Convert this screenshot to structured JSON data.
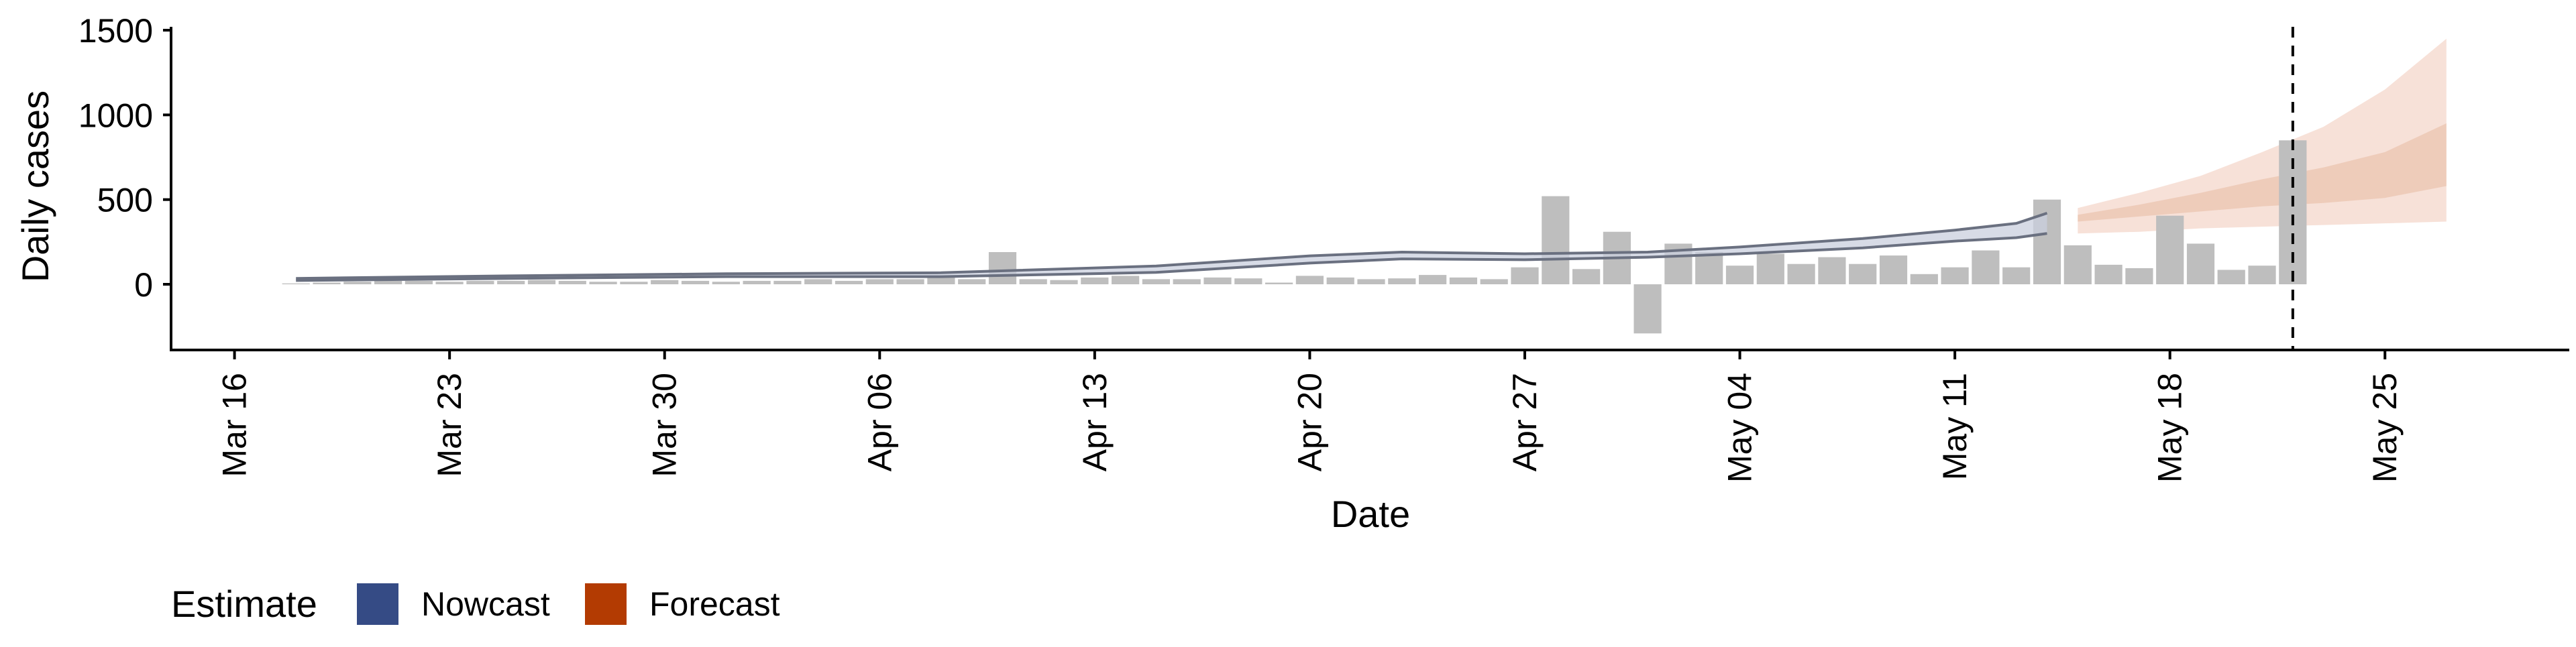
{
  "chart_data": {
    "type": "bar",
    "title": "",
    "xlabel": "Date",
    "ylabel": "Daily cases",
    "ylim": [
      -380,
      1520
    ],
    "yticks": [
      0,
      500,
      1000,
      1500
    ],
    "x_ticks": [
      {
        "date": "2020-03-16",
        "label": "Mar 16"
      },
      {
        "date": "2020-03-23",
        "label": "Mar 23"
      },
      {
        "date": "2020-03-30",
        "label": "Mar 30"
      },
      {
        "date": "2020-04-06",
        "label": "Apr 06"
      },
      {
        "date": "2020-04-13",
        "label": "Apr 13"
      },
      {
        "date": "2020-04-20",
        "label": "Apr 20"
      },
      {
        "date": "2020-04-27",
        "label": "Apr 27"
      },
      {
        "date": "2020-05-04",
        "label": "May 04"
      },
      {
        "date": "2020-05-11",
        "label": "May 11"
      },
      {
        "date": "2020-05-18",
        "label": "May 18"
      },
      {
        "date": "2020-05-25",
        "label": "May 25"
      }
    ],
    "xlim": [
      "2020-03-14",
      "2020-05-31"
    ],
    "grid": false,
    "legend": {
      "title": "Estimate",
      "placement": "bottom-left",
      "items": [
        {
          "label": "Nowcast",
          "color": "#354b85"
        },
        {
          "label": "Forecast",
          "color": "#b33b02"
        }
      ]
    },
    "reported_cases": {
      "dates": [
        "2020-03-18",
        "2020-03-19",
        "2020-03-20",
        "2020-03-21",
        "2020-03-22",
        "2020-03-23",
        "2020-03-24",
        "2020-03-25",
        "2020-03-26",
        "2020-03-27",
        "2020-03-28",
        "2020-03-29",
        "2020-03-30",
        "2020-03-31",
        "2020-04-01",
        "2020-04-02",
        "2020-04-03",
        "2020-04-04",
        "2020-04-05",
        "2020-04-06",
        "2020-04-07",
        "2020-04-08",
        "2020-04-09",
        "2020-04-10",
        "2020-04-11",
        "2020-04-12",
        "2020-04-13",
        "2020-04-14",
        "2020-04-15",
        "2020-04-16",
        "2020-04-17",
        "2020-04-18",
        "2020-04-19",
        "2020-04-20",
        "2020-04-21",
        "2020-04-22",
        "2020-04-23",
        "2020-04-24",
        "2020-04-25",
        "2020-04-26",
        "2020-04-27",
        "2020-04-28",
        "2020-04-29",
        "2020-04-30",
        "2020-05-01",
        "2020-05-02",
        "2020-05-03",
        "2020-05-04",
        "2020-05-05",
        "2020-05-06",
        "2020-05-07",
        "2020-05-08",
        "2020-05-09",
        "2020-05-10",
        "2020-05-11",
        "2020-05-12",
        "2020-05-13",
        "2020-05-14",
        "2020-05-15",
        "2020-05-16",
        "2020-05-17",
        "2020-05-18",
        "2020-05-19",
        "2020-05-20",
        "2020-05-21",
        "2020-05-22"
      ],
      "values": [
        5,
        10,
        15,
        20,
        20,
        15,
        20,
        20,
        25,
        20,
        15,
        15,
        25,
        20,
        15,
        20,
        20,
        30,
        20,
        30,
        30,
        40,
        30,
        190,
        30,
        25,
        40,
        50,
        30,
        30,
        40,
        35,
        10,
        50,
        40,
        30,
        35,
        55,
        40,
        30,
        100,
        520,
        90,
        310,
        -290,
        240,
        190,
        110,
        180,
        120,
        160,
        120,
        170,
        60,
        100,
        200,
        100,
        500,
        230,
        115,
        95,
        405,
        240,
        85,
        110,
        850
      ]
    },
    "nowcast": {
      "dates": [
        "2020-03-18",
        "2020-03-25",
        "2020-04-01",
        "2020-04-08",
        "2020-04-15",
        "2020-04-20",
        "2020-04-23",
        "2020-04-27",
        "2020-05-01",
        "2020-05-04",
        "2020-05-08",
        "2020-05-11",
        "2020-05-13",
        "2020-05-14"
      ],
      "lower": [
        22,
        35,
        45,
        45,
        70,
        125,
        150,
        145,
        160,
        180,
        215,
        255,
        275,
        300
      ],
      "upper": [
        35,
        50,
        62,
        68,
        108,
        168,
        190,
        180,
        190,
        220,
        270,
        320,
        360,
        420
      ]
    },
    "forecast": {
      "dates": [
        "2020-05-15",
        "2020-05-17",
        "2020-05-19",
        "2020-05-21",
        "2020-05-23",
        "2020-05-25",
        "2020-05-27"
      ],
      "outer_lower": [
        300,
        310,
        330,
        340,
        350,
        360,
        370
      ],
      "outer_upper": [
        450,
        540,
        640,
        780,
        930,
        1150,
        1450
      ],
      "inner_lower": [
        370,
        400,
        430,
        460,
        480,
        510,
        580
      ],
      "inner_upper": [
        410,
        470,
        540,
        620,
        690,
        780,
        950
      ]
    },
    "reference_line": {
      "date": "2020-05-22",
      "style": "dashed"
    }
  },
  "colors": {
    "bars": "#bebebe",
    "nowcast_line": "#6a7080",
    "nowcast_fill": "#c9cfdd",
    "forecast_outer": "#f7e1d8",
    "forecast_inner": "#ecc8b5",
    "axis": "#000000"
  }
}
